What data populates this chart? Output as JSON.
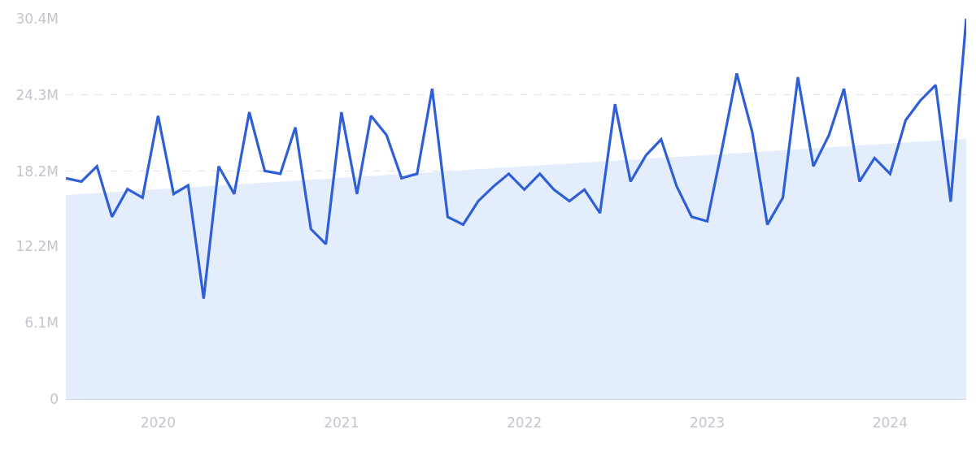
{
  "chart_data": {
    "type": "line",
    "x": [
      "2019-07",
      "2019-08",
      "2019-09",
      "2019-10",
      "2019-11",
      "2019-12",
      "2020-01",
      "2020-02",
      "2020-03",
      "2020-04",
      "2020-05",
      "2020-06",
      "2020-07",
      "2020-08",
      "2020-09",
      "2020-10",
      "2020-11",
      "2020-12",
      "2021-01",
      "2021-02",
      "2021-03",
      "2021-04",
      "2021-05",
      "2021-06",
      "2021-07",
      "2021-08",
      "2021-09",
      "2021-10",
      "2021-11",
      "2021-12",
      "2022-01",
      "2022-02",
      "2022-03",
      "2022-04",
      "2022-05",
      "2022-06",
      "2022-07",
      "2022-08",
      "2022-09",
      "2022-10",
      "2022-11",
      "2022-12",
      "2023-01",
      "2023-02",
      "2023-03",
      "2023-04",
      "2023-05",
      "2023-06",
      "2023-07",
      "2023-08",
      "2023-09",
      "2023-10",
      "2023-11",
      "2023-12",
      "2024-01",
      "2024-02",
      "2024-03",
      "2024-04",
      "2024-05",
      "2024-06"
    ],
    "series": [
      {
        "type": "area",
        "color": "#e3edfb",
        "x": [
          "2019-07",
          "2024-06"
        ],
        "values": [
          16300000,
          20800000
        ]
      },
      {
        "color": "#2f5fd6",
        "values": [
          17650000,
          17380000,
          18600000,
          14560000,
          16780000,
          16090000,
          22630000,
          16390000,
          17080000,
          8020000,
          18600000,
          16390000,
          22930000,
          18230000,
          18000000,
          21710000,
          13590000,
          12380000,
          22930000,
          16390000,
          22630000,
          21090000,
          17650000,
          18000000,
          24800000,
          14560000,
          13940000,
          15820000,
          17010000,
          18000000,
          16740000,
          18000000,
          16740000,
          15820000,
          16740000,
          14860000,
          23570000,
          17380000,
          19490000,
          20750000,
          17010000,
          14560000,
          14210000,
          20290000,
          26020000,
          21320000,
          13940000,
          16090000,
          25720000,
          18600000,
          21090000,
          24800000,
          17380000,
          19260000,
          18000000,
          22280000,
          23840000,
          25100000,
          15770000,
          30400000
        ]
      }
    ],
    "xlim": [
      "2019-07",
      "2024-06"
    ],
    "xticks": [
      {
        "value": "2020-01",
        "label": "2020"
      },
      {
        "value": "2021-01",
        "label": "2021"
      },
      {
        "value": "2022-01",
        "label": "2022"
      },
      {
        "value": "2023-01",
        "label": "2023"
      },
      {
        "value": "2024-01",
        "label": "2024"
      }
    ],
    "ylim": [
      0,
      30400000
    ],
    "yticks": [
      {
        "value": 0,
        "label": "0"
      },
      {
        "value": 6100000,
        "label": "6.1M"
      },
      {
        "value": 12200000,
        "label": "12.2M"
      },
      {
        "value": 18200000,
        "label": "18.2M"
      },
      {
        "value": 24300000,
        "label": "24.3M"
      },
      {
        "value": 30400000,
        "label": "30.4M"
      }
    ],
    "grid": "y",
    "marker": "none",
    "line_style": "solid"
  }
}
